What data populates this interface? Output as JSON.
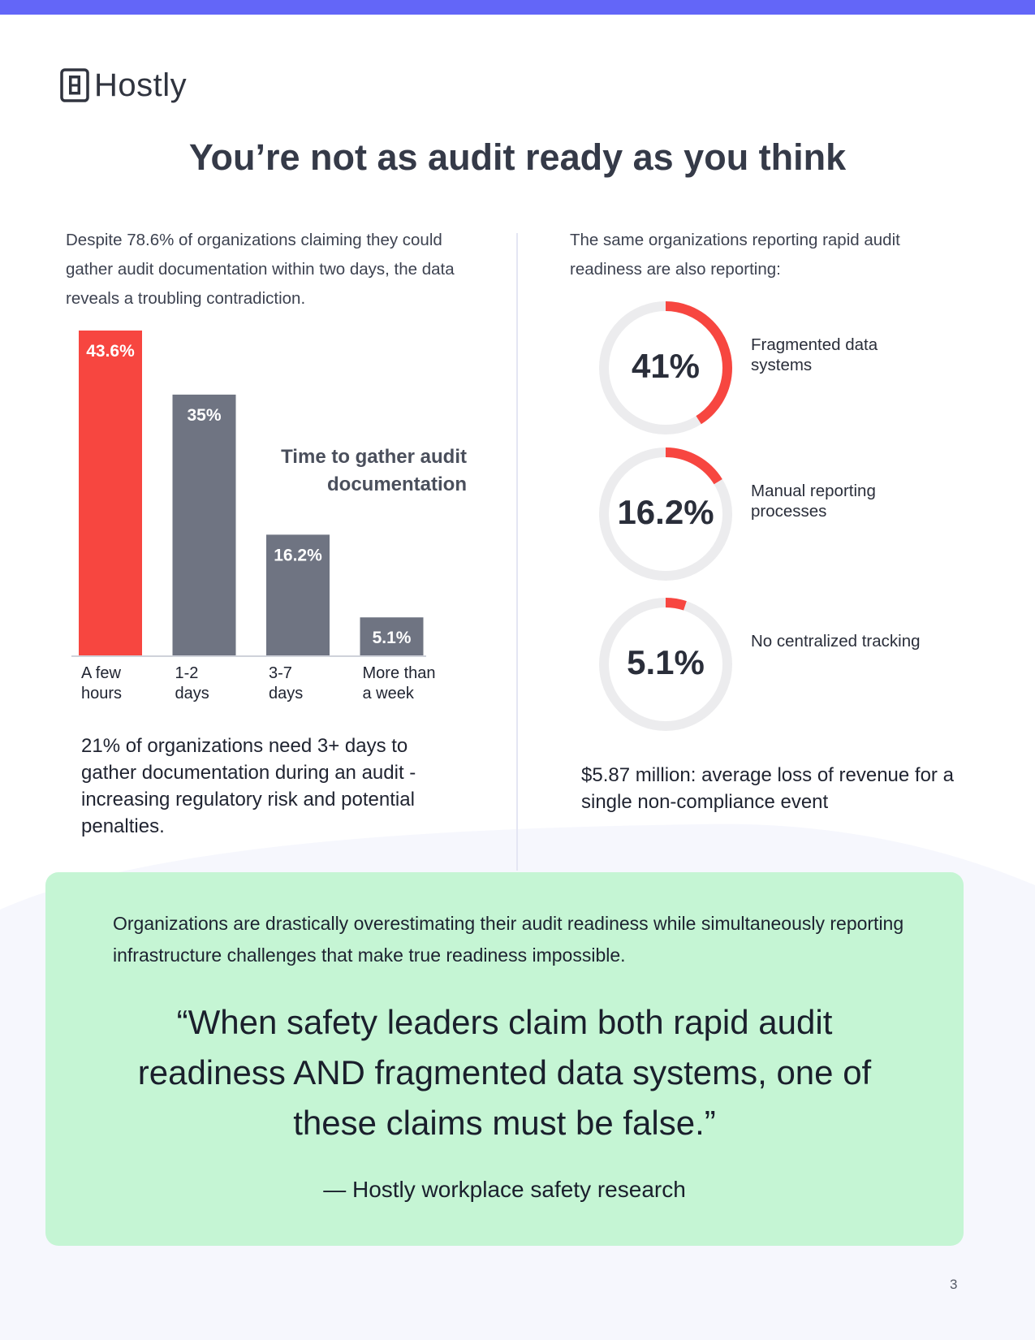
{
  "brand": {
    "name": "Hostly",
    "logo_icon": "hostly-logo-icon",
    "accent": "#6366f8"
  },
  "title": "You’re not as audit ready as you think",
  "left": {
    "intro": "Despite 78.6% of organizations claiming they could gather audit documentation within two days, the data reveals a troubling contradiction.",
    "stat": "21% of organizations need 3+ days to gather documentation during an audit - increasing regulatory risk and potential penalties."
  },
  "right": {
    "intro": "The same organizations reporting rapid audit readiness are also reporting:",
    "stat": "$5.87 million: average loss of revenue for a single non-compliance event"
  },
  "chart_data": {
    "type": "bar",
    "title": "Time to gather audit documentation",
    "categories": [
      "A few hours",
      "1-2 days",
      "3-7 days",
      "More than a week"
    ],
    "category_lines": [
      [
        "A few",
        "hours"
      ],
      [
        "1-2",
        "days"
      ],
      [
        "3-7",
        "days"
      ],
      [
        "More than",
        "a week"
      ]
    ],
    "values": [
      43.6,
      35,
      16.2,
      5.1
    ],
    "value_labels": [
      "43.6%",
      "35%",
      "16.2%",
      "5.1%"
    ],
    "ylim": [
      0,
      43.6
    ],
    "highlight_color": "#f74640",
    "bar_color": "#6f7482",
    "grid": false
  },
  "donuts": [
    {
      "value": 41,
      "value_label": "41%",
      "label": "Fragmented data systems",
      "color": "#f74640",
      "track": "#ececee"
    },
    {
      "value": 16.2,
      "value_label": "16.2%",
      "label": "Manual reporting processes",
      "color": "#f74640",
      "track": "#ececee"
    },
    {
      "value": 5.1,
      "value_label": "5.1%",
      "label": "No centralized tracking",
      "color": "#f74640",
      "track": "#ececee"
    }
  ],
  "callout": {
    "lead": "Organizations are drastically overestimating their audit readiness while simultaneously reporting infrastructure challenges that make true readiness impossible.",
    "quote": "“When safety leaders claim both rapid audit readiness AND fragmented data systems, one of these claims must be false.”",
    "cite": "— Hostly workplace safety research",
    "background": "#c5f5d4"
  },
  "page_number": "3"
}
